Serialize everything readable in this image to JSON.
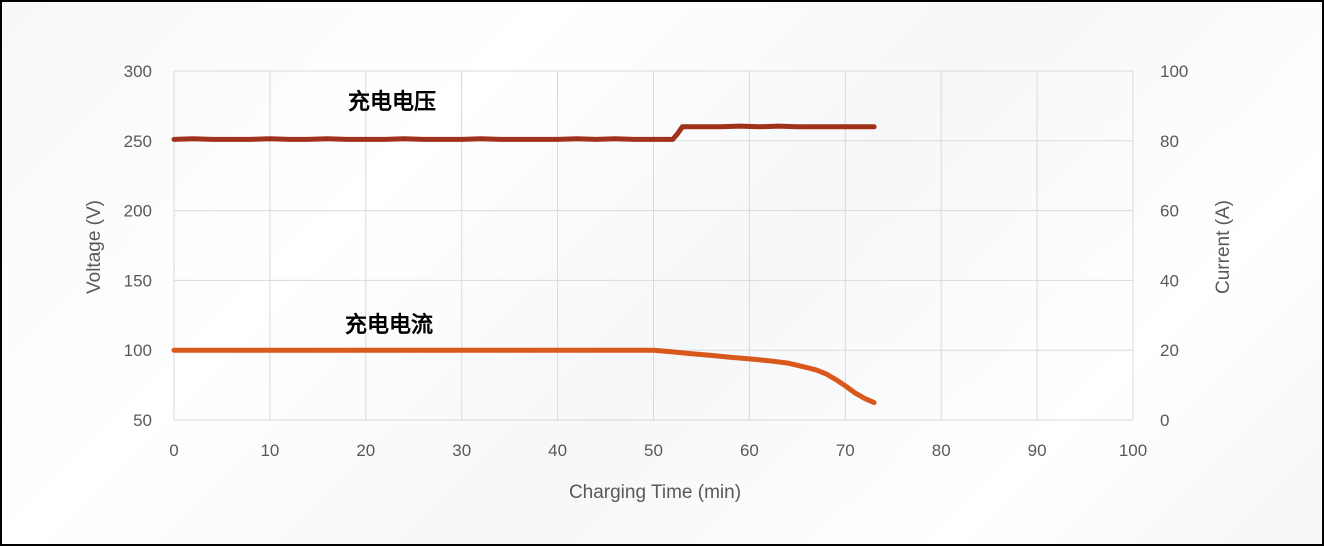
{
  "chart_data": {
    "type": "line",
    "title": "",
    "xlabel": "Charging Time (min)",
    "ylabel_left": "Voltage (V)",
    "ylabel_right": "Current (A)",
    "xlim": [
      0,
      100
    ],
    "ylim_left": [
      50,
      300
    ],
    "ylim_right": [
      0,
      100
    ],
    "x_ticks": [
      "0",
      "10",
      "20",
      "30",
      "40",
      "50",
      "60",
      "70",
      "80",
      "90",
      "100"
    ],
    "y_left_ticks": [
      "50",
      "100",
      "150",
      "200",
      "250",
      "300"
    ],
    "y_right_ticks": [
      "0",
      "20",
      "40",
      "60",
      "80",
      "100"
    ],
    "grid": true,
    "series": [
      {
        "name": "充电电压",
        "axis": "left",
        "color": "#a0311a",
        "x": [
          0,
          2,
          4,
          6,
          8,
          10,
          12,
          14,
          16,
          18,
          20,
          22,
          24,
          26,
          28,
          30,
          32,
          34,
          36,
          38,
          40,
          42,
          44,
          46,
          48,
          50,
          51.5,
          52,
          52.5,
          53,
          55,
          57,
          59,
          61,
          63,
          65,
          67,
          69,
          71,
          73
        ],
        "y": [
          251,
          251.5,
          251,
          251,
          251,
          251.5,
          251,
          251,
          251.5,
          251,
          251,
          251,
          251.5,
          251,
          251,
          251,
          251.5,
          251,
          251,
          251,
          251,
          251.5,
          251,
          251.5,
          251,
          251,
          251,
          251,
          255,
          260,
          260,
          260,
          260.5,
          260,
          260.5,
          260,
          260,
          260,
          260,
          260
        ]
      },
      {
        "name": "充电电流",
        "axis": "right",
        "color": "#d9581c",
        "x": [
          0,
          5,
          10,
          15,
          20,
          25,
          30,
          35,
          40,
          45,
          50,
          52,
          54,
          56,
          58,
          60,
          62,
          64,
          66,
          67,
          68,
          69,
          70,
          71,
          72,
          73
        ],
        "y": [
          20,
          20,
          20,
          20,
          20,
          20,
          20,
          20,
          20,
          20,
          20,
          19.5,
          19,
          18.5,
          18,
          17.5,
          17,
          16.3,
          15,
          14.3,
          13.2,
          11.6,
          9.8,
          7.8,
          6.2,
          5
        ]
      }
    ]
  }
}
